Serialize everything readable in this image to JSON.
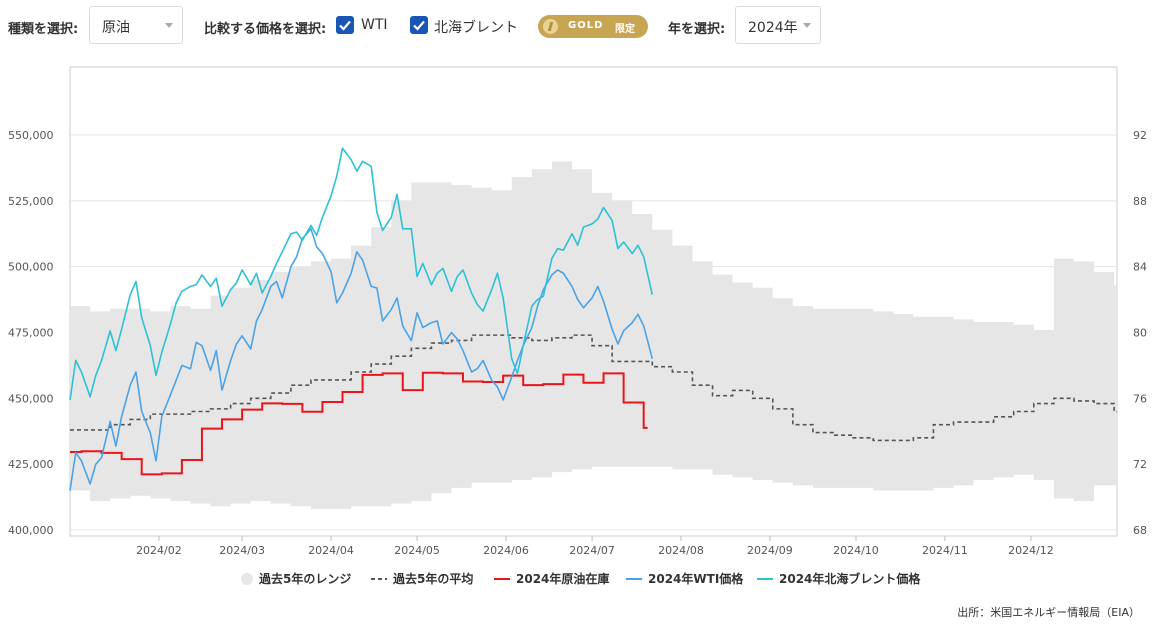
{
  "controls": {
    "type_label": "種類を選択:",
    "type_value": "原油",
    "compare_label": "比較する価格を選択:",
    "wti_label": "WTI",
    "brent_label": "北海ブレント",
    "gold_text": "GOLD",
    "gold_sub": "限定",
    "year_label": "年を選択:",
    "year_value": "2024年",
    "accent_color": "#1a56b4",
    "gold_color": "#c8a552"
  },
  "chart_data": {
    "type": "line",
    "x_ticks": [
      "2024/02",
      "2024/03",
      "2024/04",
      "2024/05",
      "2024/06",
      "2024/07",
      "2024/08",
      "2024/09",
      "2024/10",
      "2024/11",
      "2024/12"
    ],
    "y_left": {
      "ticks": [
        "400,000",
        "425,000",
        "450,000",
        "475,000",
        "500,000",
        "525,000",
        "550,000"
      ],
      "range": [
        400000,
        550000
      ]
    },
    "y_right": {
      "ticks": [
        "68",
        "72",
        "76",
        "80",
        "84",
        "88",
        "92"
      ],
      "range": [
        68,
        92
      ]
    },
    "grid": "horizontal",
    "legend_position": "bottom",
    "legend": [
      {
        "label": "過去5年のレンジ",
        "color": "#e6e6e6"
      },
      {
        "label": "過去5年の平均",
        "color": "#555555"
      },
      {
        "label": "2024年原油在庫",
        "color": "#e8161b"
      },
      {
        "label": "2024年WTI価格",
        "color": "#4aa3e8"
      },
      {
        "label": "2024年北海ブレント価格",
        "color": "#2dc1d6"
      }
    ],
    "series": [
      {
        "name": "過去5年のレンジ",
        "axis": "left",
        "x": [
          "2024/01/01",
          "2024/01/08",
          "2024/01/15",
          "2024/01/22",
          "2024/01/29",
          "2024/02/05",
          "2024/02/12",
          "2024/02/19",
          "2024/02/26",
          "2024/03/04",
          "2024/03/11",
          "2024/03/18",
          "2024/03/25",
          "2024/04/01",
          "2024/04/08",
          "2024/04/15",
          "2024/04/22",
          "2024/04/29",
          "2024/05/06",
          "2024/05/13",
          "2024/05/20",
          "2024/05/27",
          "2024/06/03",
          "2024/06/10",
          "2024/06/17",
          "2024/06/24",
          "2024/07/01",
          "2024/07/08",
          "2024/07/15",
          "2024/07/22",
          "2024/07/29",
          "2024/08/05",
          "2024/08/12",
          "2024/08/19",
          "2024/08/26",
          "2024/09/02",
          "2024/09/09",
          "2024/09/16",
          "2024/09/23",
          "2024/09/30",
          "2024/10/07",
          "2024/10/14",
          "2024/10/21",
          "2024/10/28",
          "2024/11/04",
          "2024/11/11",
          "2024/11/18",
          "2024/11/25",
          "2024/12/02",
          "2024/12/09",
          "2024/12/16",
          "2024/12/23",
          "2024/12/30"
        ],
        "low": [
          415000,
          411000,
          412000,
          413000,
          412000,
          411000,
          410000,
          409000,
          410000,
          411000,
          410000,
          409000,
          408000,
          408000,
          409000,
          409000,
          410000,
          411000,
          414000,
          416000,
          418000,
          418000,
          419000,
          420000,
          422000,
          423000,
          424000,
          424000,
          424000,
          424000,
          423000,
          423000,
          421000,
          420000,
          419000,
          418000,
          417000,
          416000,
          416000,
          416000,
          415000,
          415000,
          415000,
          416000,
          417000,
          419000,
          420000,
          421000,
          419000,
          412000,
          411000,
          417000,
          417000
        ],
        "high": [
          485000,
          483000,
          484000,
          484000,
          483000,
          485000,
          484000,
          489000,
          492000,
          495000,
          498000,
          500000,
          502000,
          503000,
          508000,
          515000,
          525000,
          532000,
          532000,
          531000,
          530000,
          529000,
          534000,
          537000,
          540000,
          537000,
          528000,
          525000,
          520000,
          514000,
          508000,
          502000,
          497000,
          494000,
          492000,
          488000,
          485000,
          484000,
          484000,
          484000,
          483000,
          482000,
          481000,
          481000,
          480000,
          479000,
          479000,
          478000,
          476000,
          503000,
          502000,
          498000,
          493000
        ]
      },
      {
        "name": "過去5年の平均",
        "axis": "left",
        "x": [
          "2024/01/01",
          "2024/01/08",
          "2024/01/15",
          "2024/01/22",
          "2024/01/29",
          "2024/02/05",
          "2024/02/12",
          "2024/02/19",
          "2024/02/26",
          "2024/03/04",
          "2024/03/11",
          "2024/03/18",
          "2024/03/25",
          "2024/04/01",
          "2024/04/08",
          "2024/04/15",
          "2024/04/22",
          "2024/04/29",
          "2024/05/06",
          "2024/05/13",
          "2024/05/20",
          "2024/05/27",
          "2024/06/03",
          "2024/06/10",
          "2024/06/17",
          "2024/06/24",
          "2024/07/01",
          "2024/07/08",
          "2024/07/15",
          "2024/07/22",
          "2024/07/29",
          "2024/08/05",
          "2024/08/12",
          "2024/08/19",
          "2024/08/26",
          "2024/09/02",
          "2024/09/09",
          "2024/09/16",
          "2024/09/23",
          "2024/09/30",
          "2024/10/07",
          "2024/10/14",
          "2024/10/21",
          "2024/10/28",
          "2024/11/04",
          "2024/11/11",
          "2024/11/18",
          "2024/11/25",
          "2024/12/02",
          "2024/12/09",
          "2024/12/16",
          "2024/12/23",
          "2024/12/30"
        ],
        "values": [
          438000,
          438000,
          440000,
          442000,
          444000,
          444000,
          445000,
          446000,
          448000,
          450000,
          452000,
          455000,
          457000,
          457000,
          460000,
          463000,
          466000,
          469000,
          471000,
          472000,
          474000,
          474000,
          473000,
          472000,
          473000,
          474000,
          470000,
          464000,
          464000,
          462000,
          460000,
          455000,
          451000,
          453000,
          450000,
          446000,
          440000,
          437000,
          436000,
          435000,
          434000,
          434000,
          435000,
          440000,
          441000,
          441000,
          443000,
          445000,
          448000,
          450000,
          449000,
          448000,
          445000
        ]
      },
      {
        "name": "2024年原油在庫",
        "axis": "left",
        "x": [
          "2024/01/01",
          "2024/01/05",
          "2024/01/12",
          "2024/01/19",
          "2024/01/26",
          "2024/02/02",
          "2024/02/09",
          "2024/02/16",
          "2024/02/23",
          "2024/03/01",
          "2024/03/08",
          "2024/03/15",
          "2024/03/22",
          "2024/03/29",
          "2024/04/05",
          "2024/04/12",
          "2024/04/19",
          "2024/04/26",
          "2024/05/03",
          "2024/05/10",
          "2024/05/17",
          "2024/05/24",
          "2024/05/31",
          "2024/06/07",
          "2024/06/14",
          "2024/06/21",
          "2024/06/28",
          "2024/07/05",
          "2024/07/12",
          "2024/07/19"
        ],
        "values": [
          429600,
          429900,
          429300,
          426900,
          421100,
          421500,
          426600,
          438500,
          442000,
          445700,
          448100,
          447900,
          444900,
          448600,
          452400,
          458900,
          459500,
          453100,
          459700,
          459500,
          456400,
          456200,
          458600,
          455000,
          455400,
          459000,
          455900,
          459500,
          448400,
          438800
        ]
      },
      {
        "name": "2024年WTI価格",
        "axis": "right",
        "x": [
          "2024/01/01",
          "2024/01/03",
          "2024/01/05",
          "2024/01/08",
          "2024/01/10",
          "2024/01/12",
          "2024/01/15",
          "2024/01/17",
          "2024/01/19",
          "2024/01/22",
          "2024/01/24",
          "2024/01/26",
          "2024/01/29",
          "2024/01/31",
          "2024/02/02",
          "2024/02/05",
          "2024/02/07",
          "2024/02/09",
          "2024/02/12",
          "2024/02/14",
          "2024/02/16",
          "2024/02/19",
          "2024/02/21",
          "2024/02/23",
          "2024/02/26",
          "2024/02/28",
          "2024/03/01",
          "2024/03/04",
          "2024/03/06",
          "2024/03/08",
          "2024/03/11",
          "2024/03/13",
          "2024/03/15",
          "2024/03/18",
          "2024/03/20",
          "2024/03/22",
          "2024/03/25",
          "2024/03/27",
          "2024/03/29",
          "2024/04/01",
          "2024/04/03",
          "2024/04/05",
          "2024/04/08",
          "2024/04/10",
          "2024/04/12",
          "2024/04/15",
          "2024/04/17",
          "2024/04/19",
          "2024/04/22",
          "2024/04/24",
          "2024/04/26",
          "2024/04/29",
          "2024/05/01",
          "2024/05/03",
          "2024/05/06",
          "2024/05/08",
          "2024/05/10",
          "2024/05/13",
          "2024/05/15",
          "2024/05/17",
          "2024/05/20",
          "2024/05/22",
          "2024/05/24",
          "2024/05/27",
          "2024/05/29",
          "2024/05/31",
          "2024/06/03",
          "2024/06/05",
          "2024/06/07",
          "2024/06/10",
          "2024/06/12",
          "2024/06/14",
          "2024/06/17",
          "2024/06/19",
          "2024/06/21",
          "2024/06/24",
          "2024/06/26",
          "2024/06/28",
          "2024/07/01",
          "2024/07/03",
          "2024/07/05",
          "2024/07/08",
          "2024/07/10",
          "2024/07/12",
          "2024/07/15",
          "2024/07/17",
          "2024/07/19",
          "2024/07/22"
        ],
        "values": [
          70.4,
          72.7,
          72.2,
          70.8,
          72.0,
          72.4,
          74.6,
          73.1,
          74.9,
          76.8,
          77.6,
          75.2,
          73.9,
          72.2,
          74.9,
          76.2,
          77.1,
          78.0,
          77.8,
          79.4,
          79.2,
          77.7,
          78.9,
          76.5,
          78.3,
          79.3,
          79.8,
          79.0,
          80.7,
          81.4,
          82.8,
          83.1,
          82.1,
          84.0,
          84.6,
          85.7,
          86.3,
          85.2,
          84.8,
          83.7,
          81.8,
          82.4,
          83.6,
          84.9,
          84.4,
          82.8,
          82.7,
          80.7,
          81.4,
          82.1,
          80.4,
          79.5,
          81.2,
          80.3,
          80.6,
          80.7,
          79.3,
          80.0,
          79.6,
          78.9,
          77.6,
          77.8,
          78.3,
          77.1,
          76.7,
          75.9,
          77.3,
          78.3,
          79.2,
          80.3,
          81.6,
          82.6,
          83.5,
          83.8,
          83.6,
          82.8,
          82.0,
          81.5,
          82.1,
          82.8,
          81.9,
          80.2,
          79.3,
          80.1,
          80.6,
          81.1,
          80.4,
          78.4
        ]
      },
      {
        "name": "2024年北海ブレント価格",
        "axis": "right",
        "x": [
          "2024/01/01",
          "2024/01/03",
          "2024/01/05",
          "2024/01/08",
          "2024/01/10",
          "2024/01/12",
          "2024/01/15",
          "2024/01/17",
          "2024/01/19",
          "2024/01/22",
          "2024/01/24",
          "2024/01/26",
          "2024/01/29",
          "2024/01/31",
          "2024/02/02",
          "2024/02/05",
          "2024/02/07",
          "2024/02/09",
          "2024/02/12",
          "2024/02/14",
          "2024/02/16",
          "2024/02/19",
          "2024/02/21",
          "2024/02/23",
          "2024/02/26",
          "2024/02/28",
          "2024/03/01",
          "2024/03/04",
          "2024/03/06",
          "2024/03/08",
          "2024/03/11",
          "2024/03/13",
          "2024/03/15",
          "2024/03/18",
          "2024/03/20",
          "2024/03/22",
          "2024/03/25",
          "2024/03/27",
          "2024/03/29",
          "2024/04/01",
          "2024/04/03",
          "2024/04/05",
          "2024/04/08",
          "2024/04/10",
          "2024/04/12",
          "2024/04/15",
          "2024/04/17",
          "2024/04/19",
          "2024/04/22",
          "2024/04/24",
          "2024/04/26",
          "2024/04/29",
          "2024/05/01",
          "2024/05/03",
          "2024/05/06",
          "2024/05/08",
          "2024/05/10",
          "2024/05/13",
          "2024/05/15",
          "2024/05/17",
          "2024/05/20",
          "2024/05/22",
          "2024/05/24",
          "2024/05/27",
          "2024/05/29",
          "2024/05/31",
          "2024/06/03",
          "2024/06/05",
          "2024/06/07",
          "2024/06/10",
          "2024/06/12",
          "2024/06/14",
          "2024/06/17",
          "2024/06/19",
          "2024/06/21",
          "2024/06/24",
          "2024/06/26",
          "2024/06/28",
          "2024/07/01",
          "2024/07/03",
          "2024/07/05",
          "2024/07/08",
          "2024/07/10",
          "2024/07/12",
          "2024/07/15",
          "2024/07/17",
          "2024/07/19",
          "2024/07/22"
        ],
        "values": [
          75.9,
          78.3,
          77.6,
          76.1,
          77.4,
          78.3,
          80.1,
          78.9,
          80.2,
          82.3,
          83.1,
          80.9,
          79.2,
          77.4,
          78.8,
          80.5,
          81.8,
          82.5,
          82.8,
          82.9,
          83.5,
          82.8,
          83.3,
          81.6,
          82.6,
          83.0,
          83.8,
          82.9,
          83.6,
          82.4,
          83.4,
          84.2,
          84.9,
          86.0,
          86.1,
          85.6,
          86.5,
          85.9,
          87.0,
          88.3,
          89.5,
          91.2,
          90.5,
          89.8,
          90.4,
          90.1,
          87.3,
          86.2,
          87.0,
          88.4,
          86.3,
          86.3,
          83.4,
          84.2,
          82.9,
          83.6,
          83.9,
          82.5,
          83.4,
          83.8,
          82.4,
          81.7,
          81.3,
          82.6,
          83.6,
          82.1,
          78.4,
          77.5,
          79.2,
          81.6,
          82.0,
          82.2,
          84.5,
          85.1,
          85.0,
          86.0,
          85.3,
          86.4,
          86.6,
          86.9,
          87.6,
          86.8,
          85.1,
          85.5,
          84.8,
          85.3,
          84.6,
          82.3
        ]
      }
    ]
  },
  "source": "出所：米国エネルギー情報局（EIA）"
}
